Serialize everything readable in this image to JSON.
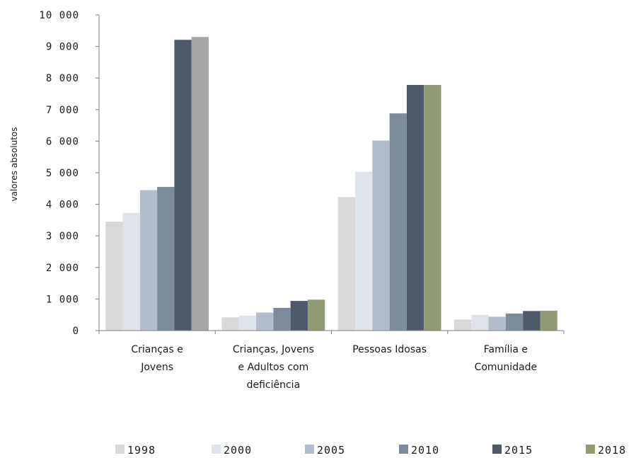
{
  "chart_data": {
    "type": "bar",
    "ylabel": "valores absolutos",
    "ylim": [
      0,
      10000
    ],
    "yticks": [
      0,
      1000,
      2000,
      3000,
      4000,
      5000,
      6000,
      7000,
      8000,
      9000,
      10000
    ],
    "ytick_labels": [
      "0",
      "1 000",
      "2 000",
      "3 000",
      "4 000",
      "5 000",
      "6 000",
      "7 000",
      "8 000",
      "9 000",
      "10 000"
    ],
    "categories": [
      [
        "Crianças e",
        "Jovens"
      ],
      [
        "Crianças, Jovens",
        "e Adultos com",
        "deficiência"
      ],
      [
        "Pessoas Idosas"
      ],
      [
        "Família e",
        "Comunidade"
      ]
    ],
    "series": [
      {
        "name": "1998",
        "color": "#d9d9d9",
        "values": [
          3450,
          420,
          4230,
          350
        ]
      },
      {
        "name": "2000",
        "color": "#dfe3ea",
        "values": [
          3730,
          470,
          5030,
          500
        ]
      },
      {
        "name": "2005",
        "color": "#b4bdcb",
        "values": [
          4450,
          570,
          6020,
          440
        ]
      },
      {
        "name": "2010",
        "color": "#7e8b9b",
        "values": [
          4550,
          720,
          6880,
          540
        ]
      },
      {
        "name": "2015",
        "color": "#4e5a69",
        "values": [
          9210,
          940,
          7780,
          620
        ]
      },
      {
        "name": "2018",
        "color_first": "#a6a6a6",
        "color": "#919b74",
        "values": [
          9300,
          980,
          7780,
          630
        ]
      }
    ],
    "legend_position": "bottom",
    "grid": false
  }
}
